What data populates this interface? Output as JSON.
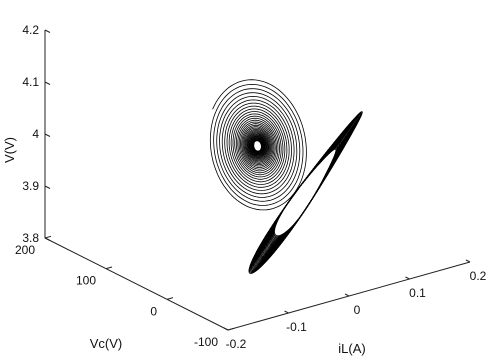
{
  "chart_data": {
    "type": "line",
    "projection": "3d",
    "grid": false,
    "xlabel": "iL(A)",
    "ylabel": "Vc(V)",
    "zlabel": "V(V)",
    "xlim": [
      -0.2,
      0.2
    ],
    "ylim": [
      -100,
      200
    ],
    "zlim": [
      3.8,
      4.2
    ],
    "x_ticks": [
      "-0.2",
      "-0.1",
      "0",
      "0.1",
      "0.2"
    ],
    "y_ticks": [
      "-100",
      "0",
      "100",
      "200"
    ],
    "z_ticks": [
      "3.8",
      "3.9",
      "4",
      "4.1",
      "4.2"
    ],
    "series": [
      {
        "description": "outer spiral of the trajectory, converging to the centre point",
        "center": [
          0.0,
          50,
          4.0
        ],
        "turns": 36,
        "amp_x": 0.03,
        "amp_y": 110,
        "amp_z": 0.13,
        "decay": 0.93
      },
      {
        "description": "inner elongated loop family of the trajectory",
        "center": [
          0.03,
          0,
          3.93
        ],
        "turns": 40,
        "amp_x": 0.12,
        "amp_y": 90,
        "amp_z": 0.1
      }
    ],
    "line_color": "#000000"
  }
}
